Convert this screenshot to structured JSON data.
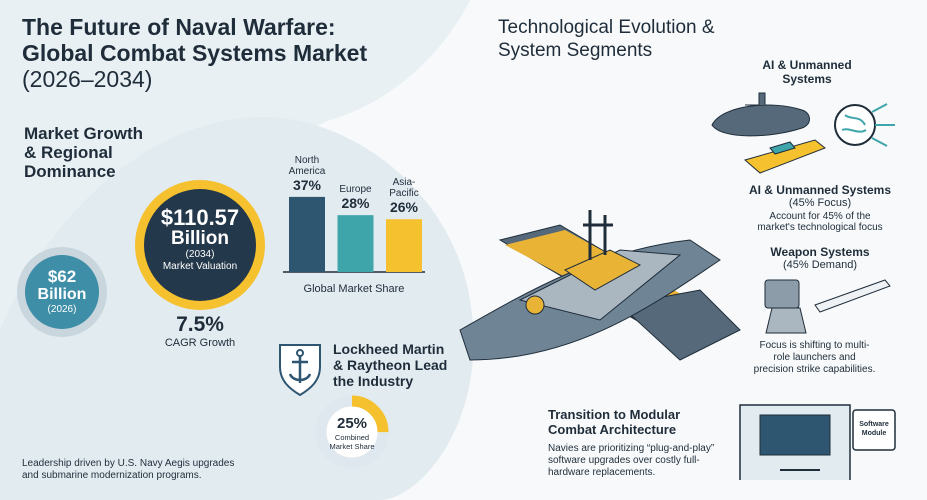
{
  "header": {
    "title": [
      "The Future of Naval Warfare:",
      "Global Combat Systems Market"
    ],
    "years": "(2026–2034)"
  },
  "growth": {
    "heading": "Market Growth & Regional Dominance",
    "valuation_2034": {
      "amount": "$110.57",
      "unit": "Billion",
      "year": "(2034)",
      "label": "Market Valuation"
    },
    "valuation_2026": {
      "amount": "$62",
      "unit": "Billion",
      "year": "(2026)"
    },
    "cagr": {
      "value": "7.5%",
      "label": "CAGR Growth"
    }
  },
  "leaders": {
    "heading": "Lockheed Martin & Raytheon Lead the Industry",
    "note": "Leadership driven by U.S. Navy Aegis upgrades and submarine modernization programs."
  },
  "chart_data": [
    {
      "type": "bar",
      "xlabel": "Global Market Share",
      "categories": [
        "North America",
        "Europe",
        "Asia-Pacific"
      ],
      "values": [
        37,
        28,
        26
      ],
      "value_labels": [
        "37%",
        "28%",
        "26%"
      ],
      "colors": [
        "#2f5670",
        "#3ea5ab",
        "#f5c12e"
      ]
    },
    {
      "type": "donut",
      "values": [
        25
      ],
      "value_labels": [
        "25%"
      ],
      "label": [
        "Combined",
        "Market Share"
      ],
      "colors": [
        "#f5c12e",
        "#dfe8ee"
      ]
    }
  ],
  "tech": {
    "heading": "Technological Evolution & System Segments",
    "icon_label": "AI & Unmanned Systems",
    "ai": {
      "title": "AI & Unmanned Systems",
      "sub": "(45% Focus)",
      "text": "Account for 45% of the market's technological focus"
    },
    "weapons": {
      "title": "Weapon Systems",
      "sub": "(45% Demand)",
      "text": "Focus is shifting to multi-role launchers and precision strike capabilities."
    },
    "modular": {
      "title": "Transition to Modular Combat Architecture",
      "text": "Navies are prioritizing “plug-and-play” software upgrades over costly full-hardware replacements.",
      "module": "Software Module"
    }
  }
}
